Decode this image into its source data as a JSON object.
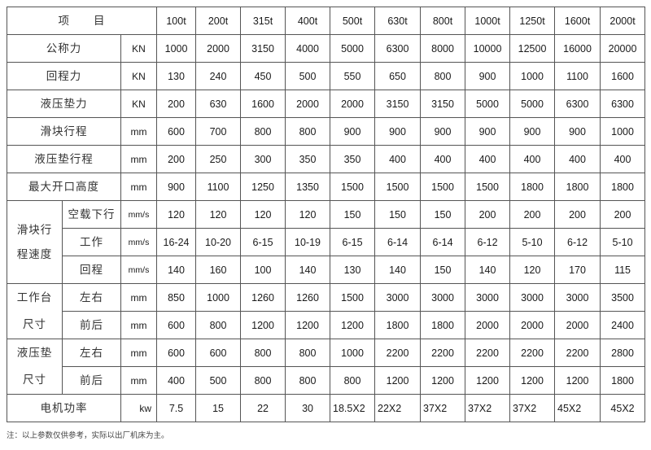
{
  "header": {
    "item_label": "项　　目",
    "models": [
      "100t",
      "200t",
      "315t",
      "400t",
      "500t",
      "630t",
      "800t",
      "1000t",
      "1250t",
      "1600t",
      "2000t"
    ]
  },
  "rows": [
    {
      "group": "",
      "label": "公称力",
      "unit": "KN",
      "values": [
        "1000",
        "2000",
        "3150",
        "4000",
        "5000",
        "6300",
        "8000",
        "10000",
        "12500",
        "16000",
        "20000"
      ]
    },
    {
      "group": "",
      "label": "回程力",
      "unit": "KN",
      "values": [
        "130",
        "240",
        "450",
        "500",
        "550",
        "650",
        "800",
        "900",
        "1000",
        "1100",
        "1600"
      ]
    },
    {
      "group": "",
      "label": "液压垫力",
      "unit": "KN",
      "values": [
        "200",
        "630",
        "1600",
        "2000",
        "2000",
        "3150",
        "3150",
        "5000",
        "5000",
        "6300",
        "6300"
      ]
    },
    {
      "group": "",
      "label": "滑块行程",
      "unit": "mm",
      "values": [
        "600",
        "700",
        "800",
        "800",
        "900",
        "900",
        "900",
        "900",
        "900",
        "900",
        "1000"
      ]
    },
    {
      "group": "",
      "label": "液压垫行程",
      "unit": "mm",
      "values": [
        "200",
        "250",
        "300",
        "350",
        "350",
        "400",
        "400",
        "400",
        "400",
        "400",
        "400"
      ]
    },
    {
      "group": "",
      "label": "最大开口高度",
      "unit": "mm",
      "values": [
        "900",
        "1100",
        "1250",
        "1350",
        "1500",
        "1500",
        "1500",
        "1500",
        "1800",
        "1800",
        "1800"
      ]
    },
    {
      "group": "滑块行程速度",
      "label": "空载下行",
      "unit": "mm/s",
      "values": [
        "120",
        "120",
        "120",
        "120",
        "150",
        "150",
        "150",
        "200",
        "200",
        "200",
        "200"
      ]
    },
    {
      "group": "滑块行程速度",
      "label": "工作",
      "unit": "mm/s",
      "values": [
        "16-24",
        "10-20",
        "6-15",
        "10-19",
        "6-15",
        "6-14",
        "6-14",
        "6-12",
        "5-10",
        "6-12",
        "5-10"
      ]
    },
    {
      "group": "滑块行程速度",
      "label": "回程",
      "unit": "mm/s",
      "values": [
        "140",
        "160",
        "100",
        "140",
        "130",
        "140",
        "150",
        "140",
        "120",
        "170",
        "115"
      ]
    },
    {
      "group": "工作台尺寸",
      "label": "左右",
      "unit": "mm",
      "values": [
        "850",
        "1000",
        "1260",
        "1260",
        "1500",
        "3000",
        "3000",
        "3000",
        "3000",
        "3000",
        "3500"
      ]
    },
    {
      "group": "工作台尺寸",
      "label": "前后",
      "unit": "mm",
      "values": [
        "600",
        "800",
        "1200",
        "1200",
        "1200",
        "1800",
        "1800",
        "2000",
        "2000",
        "2000",
        "2400"
      ]
    },
    {
      "group": "液压垫尺寸",
      "label": "左右",
      "unit": "mm",
      "values": [
        "600",
        "600",
        "800",
        "800",
        "1000",
        "2200",
        "2200",
        "2200",
        "2200",
        "2200",
        "2800"
      ]
    },
    {
      "group": "液压垫尺寸",
      "label": "前后",
      "unit": "mm",
      "values": [
        "400",
        "500",
        "800",
        "800",
        "800",
        "1200",
        "1200",
        "1200",
        "1200",
        "1200",
        "1800"
      ]
    },
    {
      "group": "",
      "label": "电机功率",
      "unit": "kw",
      "values": [
        "7.5",
        "15",
        "22",
        "30",
        "18.5X2",
        "22X2",
        "37X2",
        "37X2",
        "37X2",
        "45X2",
        "45X2"
      ]
    }
  ],
  "groups": {
    "speed": "滑块行\n程速度",
    "table": "工作台\n尺寸",
    "cushion": "液压垫\n尺寸"
  },
  "group_lines": {
    "speed": [
      "滑块行",
      "程速度"
    ],
    "table": [
      "工作台",
      "尺寸"
    ],
    "cushion": [
      "液压垫",
      "尺寸"
    ]
  },
  "note": "注：以上参数仅供参考，实际以出厂机床为主。"
}
